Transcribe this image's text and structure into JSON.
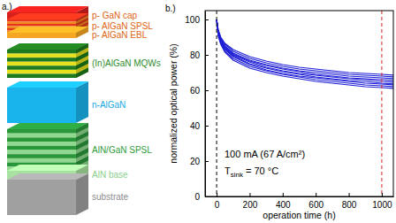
{
  "diagram": {
    "panel_label": "a.)",
    "layers": [
      {
        "label": "p- GaN cap",
        "color": "#e06414",
        "colors": [
          "#d8201c"
        ]
      },
      {
        "label": "p- AlGaN SPSL",
        "color": "#e06414",
        "colors": [
          "#e8341c",
          "#f08a20"
        ]
      },
      {
        "label": "p- AlGaN EBL",
        "color": "#e06414",
        "colors": [
          "#f5a623"
        ]
      },
      {
        "label": "(In)AlGaN MQWs",
        "color": "#2e8b2e",
        "colors": [
          "#1e7a1e",
          "#e6e020"
        ]
      },
      {
        "label": "n-AlGaN",
        "color": "#1aa8e6",
        "colors": [
          "#1ab4ec"
        ]
      },
      {
        "label": "AlN/GaN SPSL",
        "color": "#2e9a3a",
        "colors": [
          "#2a963a",
          "#90d890"
        ]
      },
      {
        "label": "AlN base",
        "color": "#8cd08c",
        "colors": [
          "#a8e2a0"
        ]
      },
      {
        "label": "substrate",
        "color": "#8c8c8c",
        "colors": [
          "#a0a0a0"
        ]
      }
    ]
  },
  "chart_data": {
    "type": "line",
    "panel_label": "b.)",
    "x_label": "operation time (h)",
    "y_label": "normalized optical power (%)",
    "x": [
      0,
      10,
      25,
      50,
      100,
      200,
      300,
      400,
      500,
      600,
      700,
      800,
      900,
      1000,
      1080
    ],
    "series": [
      {
        "color": "#1f1fd6",
        "values": [
          100,
          94,
          90,
          86.5,
          83,
          79,
          76.5,
          74.5,
          73,
          72,
          71,
          70,
          69.5,
          69,
          68.5
        ]
      },
      {
        "color": "#1f1fd6",
        "values": [
          100,
          93.5,
          89.5,
          86,
          82,
          78,
          75.5,
          73.5,
          72,
          71,
          70,
          69,
          68.5,
          68,
          67.5
        ]
      },
      {
        "color": "#1f1fd6",
        "values": [
          100,
          93,
          89,
          85,
          81,
          77,
          74.5,
          72.5,
          71,
          70,
          69,
          68,
          67.5,
          67,
          66.5
        ]
      },
      {
        "color": "#1f1fd6",
        "values": [
          100,
          92.5,
          88.5,
          84.5,
          80.5,
          76.5,
          74,
          72,
          70.5,
          69,
          68,
          67,
          66.5,
          66,
          65.5
        ]
      },
      {
        "color": "#1f1fd6",
        "values": [
          100,
          92,
          88,
          84,
          80,
          76,
          73,
          71,
          69.5,
          68.5,
          67.5,
          66.5,
          66,
          65,
          64.5
        ]
      },
      {
        "color": "#1f1fd6",
        "values": [
          100,
          92,
          87.5,
          83.5,
          79.5,
          75,
          72.5,
          70.5,
          69,
          67.5,
          66.5,
          65.5,
          65,
          64,
          63.5
        ]
      },
      {
        "color": "#1f1fd6",
        "values": [
          100,
          91.5,
          87,
          83,
          79,
          74.5,
          71.5,
          69.5,
          68,
          67,
          66,
          65,
          64,
          63.5,
          63
        ]
      },
      {
        "color": "#1f1fd6",
        "values": [
          100,
          91,
          86.5,
          82,
          78,
          73.5,
          71,
          69,
          67.5,
          66,
          65,
          64,
          63,
          62.5,
          62
        ]
      },
      {
        "color": "#1f1fd6",
        "values": [
          100,
          90.5,
          86,
          81.5,
          77,
          72.5,
          70,
          68,
          66.5,
          65,
          64,
          63,
          62,
          61.5,
          61
        ]
      }
    ],
    "vlines": [
      {
        "x": 0,
        "color": "#000000",
        "line_style": "dashed"
      },
      {
        "x": 1000,
        "color": "#e02020",
        "line_style": "dashed"
      }
    ],
    "annotations": [
      "100 mA (67 A/cm²)",
      [
        "T",
        "sink",
        " = 70 °C"
      ]
    ],
    "xlim": [
      -70,
      1070
    ],
    "ylim": [
      0,
      105
    ],
    "xticks": [
      0,
      200,
      400,
      600,
      800,
      1000
    ],
    "yticks": [
      0,
      20,
      40,
      60,
      80,
      100
    ],
    "grid": false
  }
}
